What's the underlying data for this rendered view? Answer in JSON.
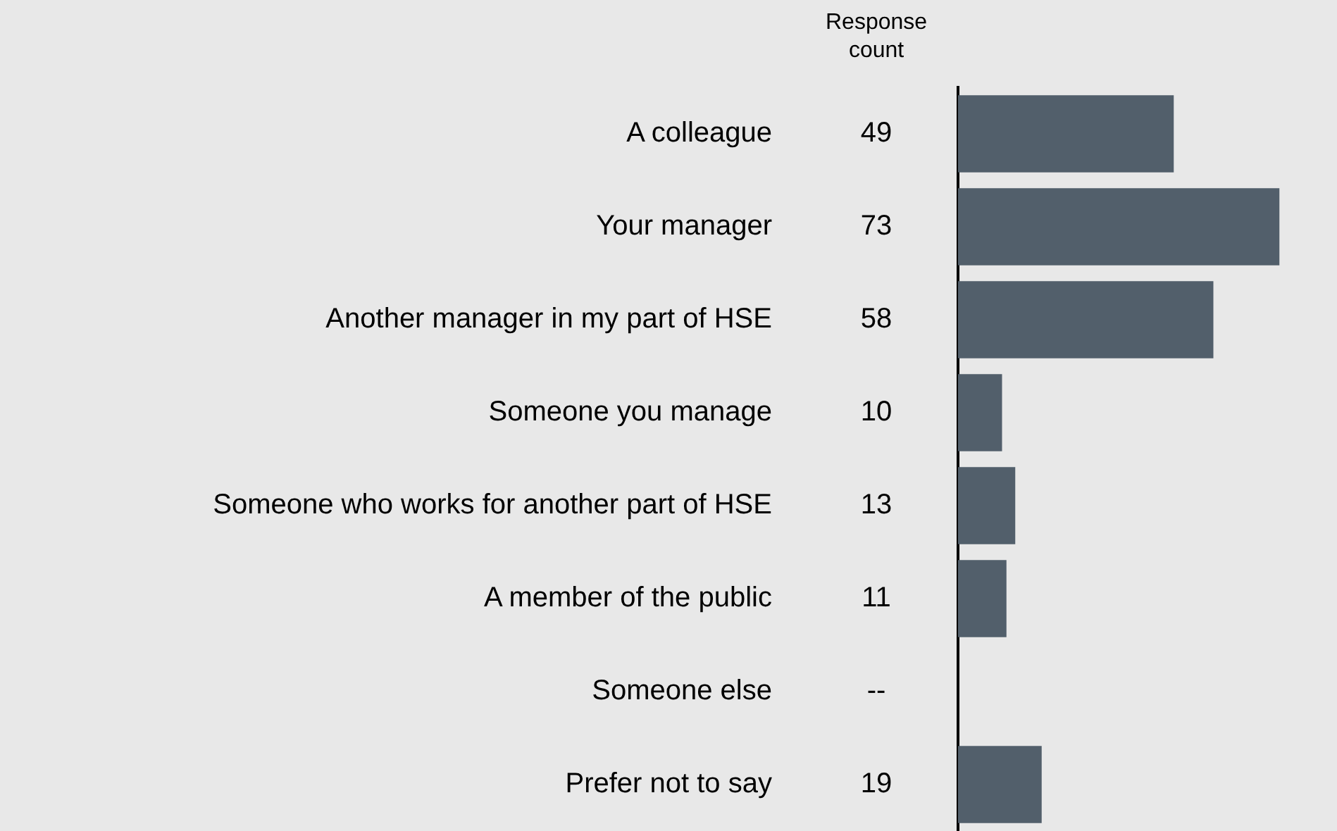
{
  "chart_data": {
    "type": "bar",
    "orientation": "horizontal",
    "categories": [
      "A colleague",
      "Your manager",
      "Another manager in my part of HSE",
      "Someone you manage",
      "Someone who works for another part of HSE",
      "A member of the public",
      "Someone else",
      "Prefer not to say"
    ],
    "values": [
      49,
      73,
      58,
      10,
      13,
      11,
      null,
      19
    ],
    "value_labels": [
      "49",
      "73",
      "58",
      "10",
      "13",
      "11",
      "--",
      "19"
    ],
    "color": "#525f6b",
    "annotations": [
      "Response count"
    ]
  }
}
